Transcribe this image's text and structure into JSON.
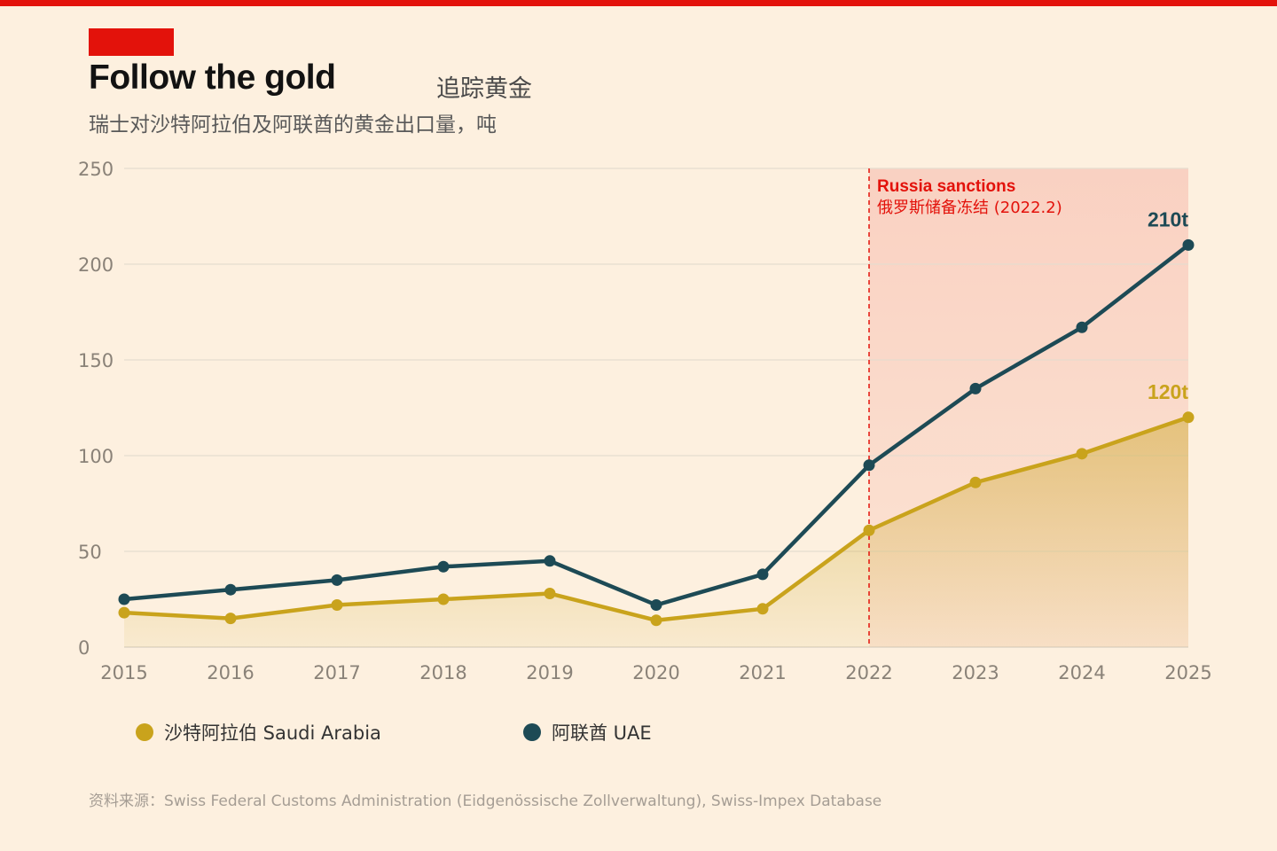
{
  "header": {
    "title": "Follow the gold",
    "title_cn": "追踪黄金",
    "subtitle": "瑞士对沙特阿拉伯及阿联酋的黄金出口量，吨"
  },
  "colors": {
    "accent": "#e3120b",
    "saudi": "#c9a31c",
    "uae": "#1d4a55",
    "background": "#fdf0df",
    "shade": "#f9cfc0"
  },
  "chart_data": {
    "type": "line",
    "title": "Follow the gold",
    "xlabel": "",
    "ylabel": "",
    "x": [
      2015,
      2016,
      2017,
      2018,
      2019,
      2020,
      2021,
      2022,
      2023,
      2024,
      2025
    ],
    "x_tick_labels": [
      "2015",
      "2016",
      "2017",
      "2018",
      "2019",
      "2020",
      "2021",
      "2022",
      "2023",
      "2024",
      "2025"
    ],
    "ylim": [
      0,
      250
    ],
    "y_ticks": [
      0,
      50,
      100,
      150,
      200,
      250
    ],
    "grid": true,
    "series": [
      {
        "name": "沙特阿拉伯 Saudi Arabia",
        "key": "saudi",
        "values": [
          18,
          15,
          22,
          25,
          28,
          14,
          20,
          61,
          86,
          101,
          120
        ],
        "end_label": "120t",
        "area_fill": true
      },
      {
        "name": "阿联酋 UAE",
        "key": "uae",
        "values": [
          25,
          30,
          35,
          42,
          45,
          22,
          38,
          95,
          135,
          167,
          210
        ],
        "end_label": "210t",
        "area_fill": false
      }
    ],
    "annotation": {
      "x_start": 2022,
      "x_end": 2025,
      "label_en": "Russia sanctions",
      "label_cn": "俄罗斯储备冻结 (2022.2)"
    },
    "legend_position": "bottom-left"
  },
  "legend": {
    "saudi_label": "沙特阿拉伯 Saudi Arabia",
    "uae_label": "阿联酋 UAE"
  },
  "source": "资料来源：Swiss Federal Customs Administration (Eidgenössische Zollverwaltung), Swiss-Impex Database"
}
